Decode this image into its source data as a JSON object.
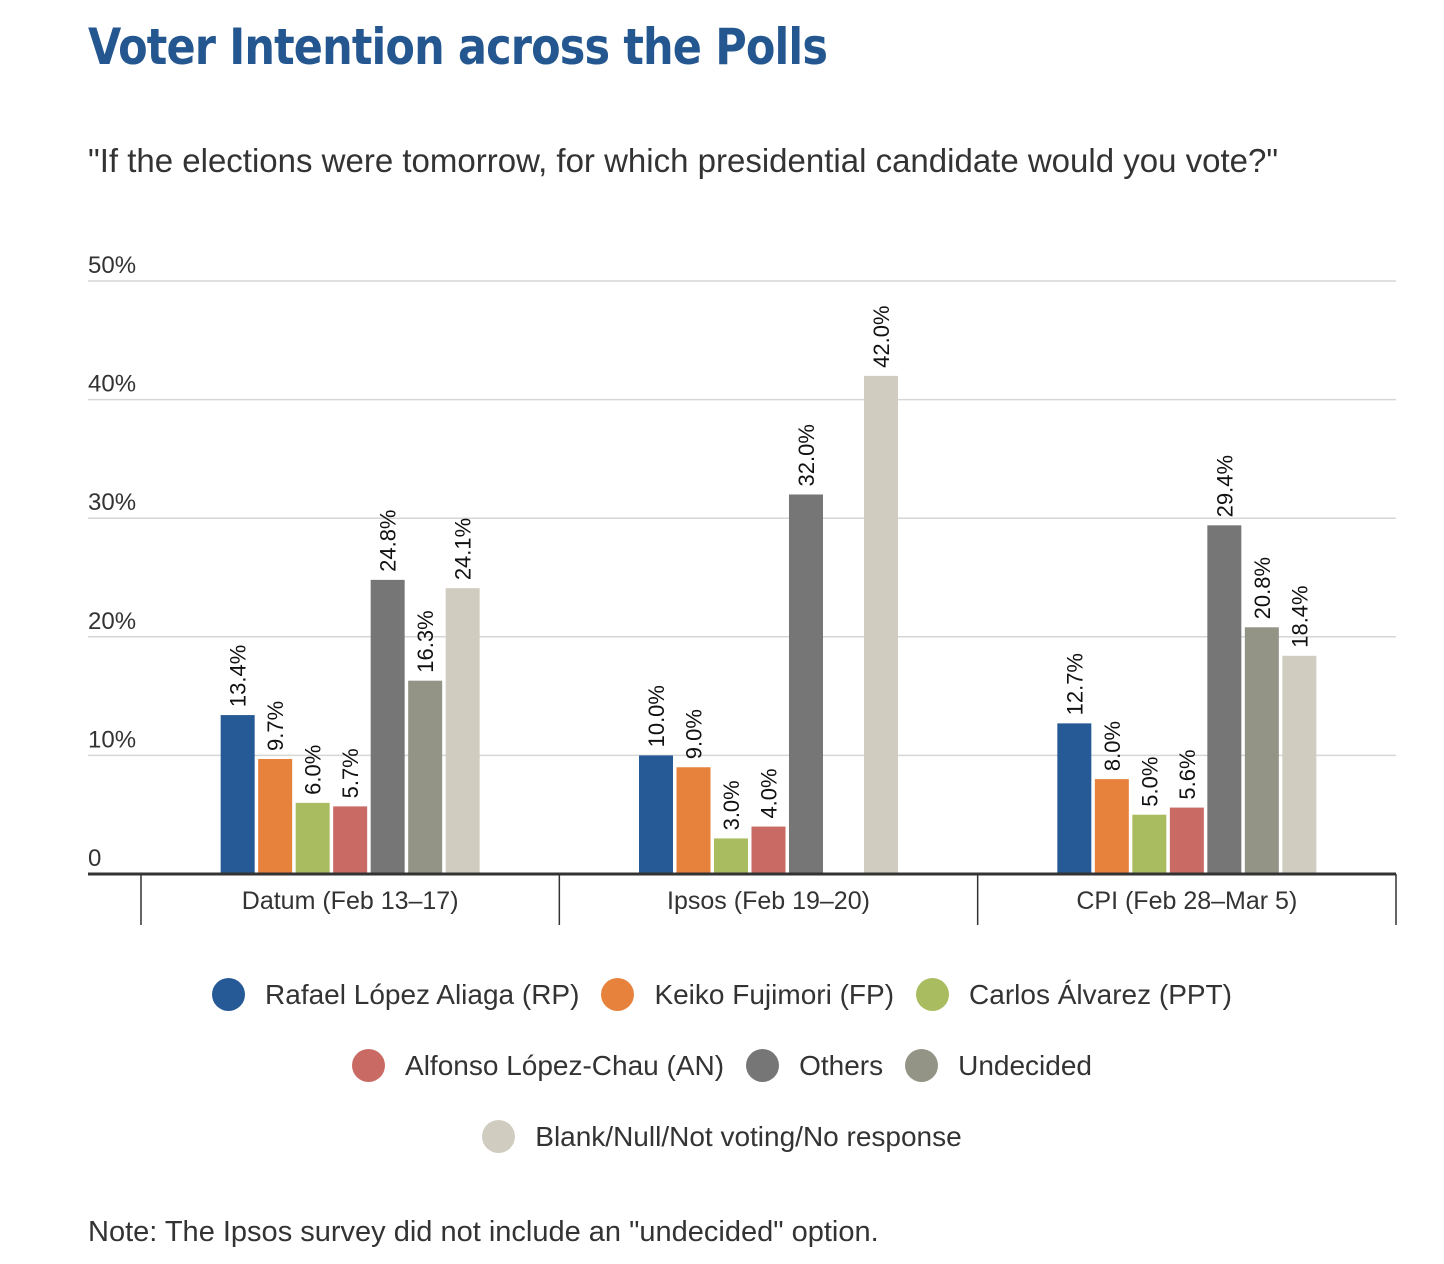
{
  "title": "Voter Intention across the Polls",
  "subtitle": "\"If the elections were tomorrow, for which presidential candidate would you vote?\"",
  "note": "Note: The Ipsos survey did not include an \"undecided\" option.",
  "chart_data": {
    "type": "bar",
    "categories": [
      "Datum (Feb 13–17)",
      "Ipsos (Feb 19–20)",
      "CPI (Feb 28–Mar 5)"
    ],
    "ylim": [
      0,
      50
    ],
    "yticks": [
      0,
      10,
      20,
      30,
      40,
      50
    ],
    "ytick_labels": [
      "0",
      "10%",
      "20%",
      "30%",
      "40%",
      "50%"
    ],
    "grid": true,
    "legend_position": "bottom",
    "series": [
      {
        "name": "Rafael López Aliaga (RP)",
        "color": "#265a96",
        "values": [
          13.4,
          10.0,
          12.7
        ]
      },
      {
        "name": "Keiko Fujimori (FP)",
        "color": "#e6823c",
        "values": [
          9.7,
          9.0,
          8.0
        ]
      },
      {
        "name": "Carlos Álvarez (PPT)",
        "color": "#a9bd60",
        "values": [
          6.0,
          3.0,
          5.0
        ]
      },
      {
        "name": "Alfonso López-Chau (AN)",
        "color": "#c96a64",
        "values": [
          5.7,
          4.0,
          5.6
        ]
      },
      {
        "name": "Others",
        "color": "#767676",
        "values": [
          24.8,
          32.0,
          29.4
        ]
      },
      {
        "name": "Undecided",
        "color": "#939386",
        "values": [
          16.3,
          null,
          20.8
        ]
      },
      {
        "name": "Blank/Null/Not voting/No response",
        "color": "#d0ccbf",
        "values": [
          24.1,
          42.0,
          18.4
        ]
      }
    ]
  }
}
